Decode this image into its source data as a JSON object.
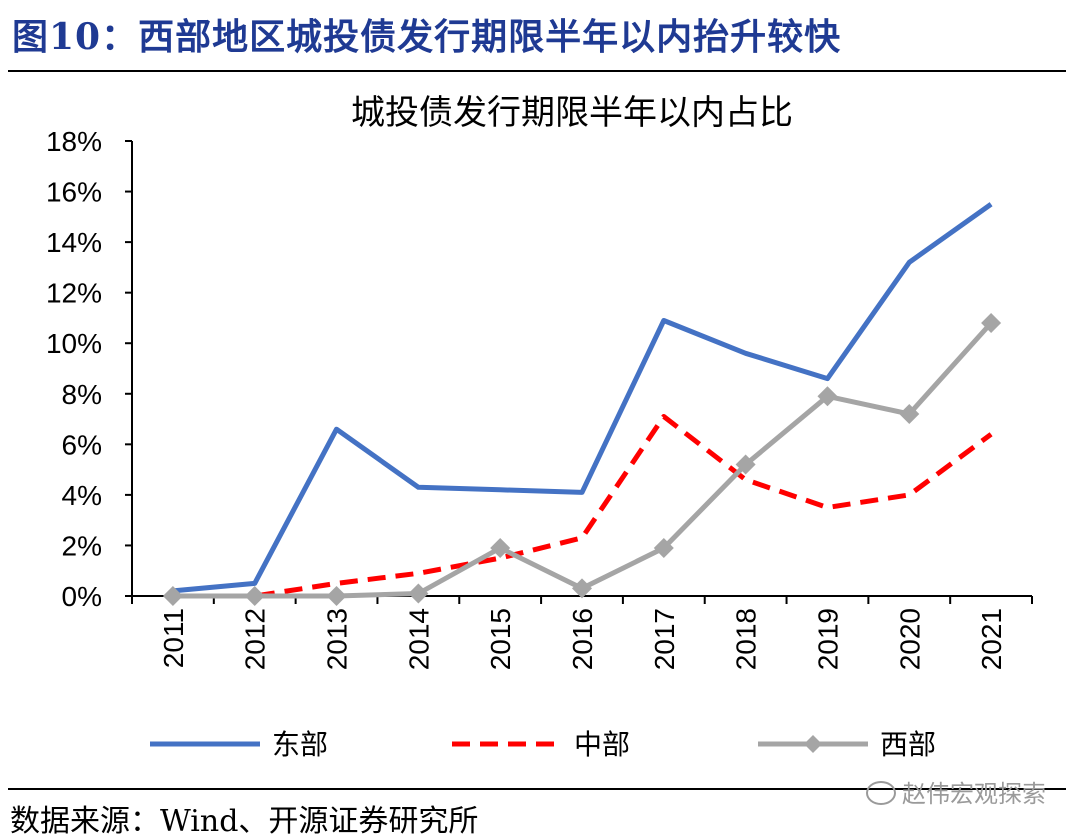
{
  "figure": {
    "title": "图10：西部地区城投债发行期限半年以内抬升较快",
    "source": "数据来源：Wind、开源证券研究所",
    "watermark": "赵伟宏观探索"
  },
  "chart_data": {
    "type": "line",
    "title": "城投债发行期限半年以内占比",
    "xlabel": "",
    "ylabel": "",
    "categories": [
      "2011",
      "2012",
      "2013",
      "2014",
      "2015",
      "2016",
      "2017",
      "2018",
      "2019",
      "2020",
      "2021"
    ],
    "y_ticks": [
      "0%",
      "2%",
      "4%",
      "6%",
      "8%",
      "10%",
      "12%",
      "14%",
      "16%",
      "18%"
    ],
    "ylim": [
      0,
      18
    ],
    "grid": false,
    "legend_position": "bottom",
    "series": [
      {
        "name": "东部",
        "color": "#4472c4",
        "style": "solid",
        "marker": "none",
        "values": [
          0.2,
          0.5,
          6.6,
          4.3,
          4.2,
          4.1,
          10.9,
          9.6,
          8.6,
          13.2,
          15.5
        ]
      },
      {
        "name": "中部",
        "color": "#ff0000",
        "style": "dashed",
        "marker": "none",
        "values": [
          0.0,
          0.0,
          0.5,
          0.9,
          1.5,
          2.3,
          7.1,
          4.6,
          3.5,
          4.0,
          6.4
        ]
      },
      {
        "name": "西部",
        "color": "#a5a5a5",
        "style": "solid",
        "marker": "diamond",
        "values": [
          0.0,
          0.0,
          0.0,
          0.1,
          1.9,
          0.3,
          1.9,
          5.2,
          7.9,
          7.2,
          10.8
        ]
      }
    ]
  }
}
